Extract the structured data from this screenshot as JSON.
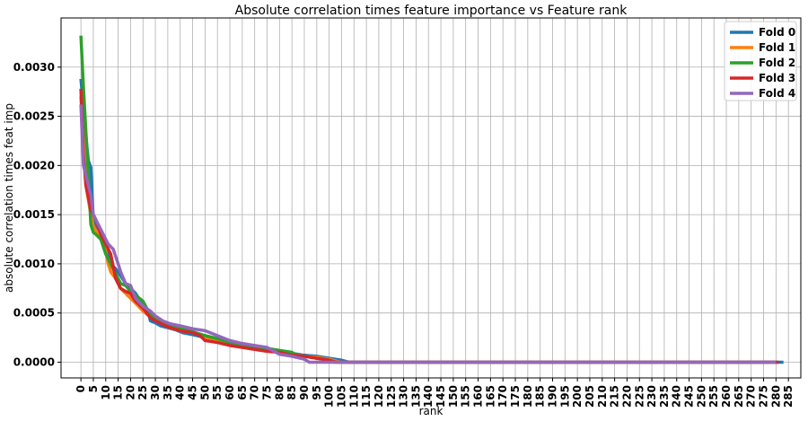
{
  "chart_data": {
    "type": "line",
    "title": "Absolute correlation times feature importance vs Feature rank",
    "xlabel": "rank",
    "ylabel": "absolute correlation times feat imp",
    "xlim": [
      -8,
      290
    ],
    "ylim": [
      -0.00016,
      0.0035
    ],
    "x_ticks": [
      0,
      5,
      10,
      15,
      20,
      25,
      30,
      35,
      40,
      45,
      50,
      55,
      60,
      65,
      70,
      75,
      80,
      85,
      90,
      95,
      100,
      105,
      110,
      115,
      120,
      125,
      130,
      135,
      140,
      145,
      150,
      155,
      160,
      165,
      170,
      175,
      180,
      185,
      190,
      195,
      200,
      205,
      210,
      215,
      220,
      225,
      230,
      235,
      240,
      245,
      250,
      255,
      260,
      265,
      270,
      275,
      280,
      285
    ],
    "y_ticks": [
      0.0,
      0.0005,
      0.001,
      0.0015,
      0.002,
      0.0025,
      0.003
    ],
    "y_tick_labels": [
      "0.0000",
      "0.0005",
      "0.0010",
      "0.0015",
      "0.0020",
      "0.0025",
      "0.0030"
    ],
    "grid": true,
    "legend_position": "top-right",
    "series": [
      {
        "name": "Fold 0",
        "color": "#1f77b4",
        "points": [
          [
            0,
            0.00288
          ],
          [
            1,
            0.0026
          ],
          [
            2,
            0.0023
          ],
          [
            3,
            0.00205
          ],
          [
            4,
            0.00198
          ],
          [
            5,
            0.00145
          ],
          [
            6,
            0.0014
          ],
          [
            7,
            0.00135
          ],
          [
            8,
            0.0013
          ],
          [
            10,
            0.0012
          ],
          [
            12,
            0.001
          ],
          [
            14,
            0.00095
          ],
          [
            16,
            0.00088
          ],
          [
            18,
            0.0008
          ],
          [
            20,
            0.00075
          ],
          [
            22,
            0.0007
          ],
          [
            24,
            0.00062
          ],
          [
            27,
            0.00052
          ],
          [
            28,
            0.00042
          ],
          [
            30,
            0.0004
          ],
          [
            32,
            0.00037
          ],
          [
            35,
            0.00035
          ],
          [
            38,
            0.00033
          ],
          [
            41,
            0.0003
          ],
          [
            45,
            0.00028
          ],
          [
            50,
            0.00025
          ],
          [
            55,
            0.00022
          ],
          [
            60,
            0.00019
          ],
          [
            65,
            0.00017
          ],
          [
            70,
            0.00015
          ],
          [
            75,
            0.00013
          ],
          [
            80,
            0.00011
          ],
          [
            85,
            9e-05
          ],
          [
            90,
            7e-05
          ],
          [
            95,
            6e-05
          ],
          [
            100,
            4e-05
          ],
          [
            105,
            2e-05
          ],
          [
            108,
            0.0
          ],
          [
            283,
            0.0
          ]
        ]
      },
      {
        "name": "Fold 1",
        "color": "#ff7f0e",
        "points": [
          [
            0,
            0.0027
          ],
          [
            2,
            0.0018
          ],
          [
            4,
            0.0015
          ],
          [
            5,
            0.00138
          ],
          [
            7,
            0.0013
          ],
          [
            9,
            0.00125
          ],
          [
            11,
            0.001
          ],
          [
            12,
            0.00092
          ],
          [
            14,
            0.00085
          ],
          [
            16,
            0.00075
          ],
          [
            18,
            0.0007
          ],
          [
            20,
            0.00065
          ],
          [
            22,
            0.0006
          ],
          [
            25,
            0.00052
          ],
          [
            28,
            0.00046
          ],
          [
            32,
            0.0004
          ],
          [
            35,
            0.00036
          ],
          [
            40,
            0.00032
          ],
          [
            45,
            0.0003
          ],
          [
            48,
            0.00028
          ],
          [
            50,
            0.00024
          ],
          [
            55,
            0.00021
          ],
          [
            60,
            0.00018
          ],
          [
            65,
            0.00016
          ],
          [
            70,
            0.00014
          ],
          [
            75,
            0.00012
          ],
          [
            80,
            0.0001
          ],
          [
            85,
            8e-05
          ],
          [
            90,
            6e-05
          ],
          [
            95,
            5e-05
          ],
          [
            100,
            3e-05
          ],
          [
            103,
            1e-05
          ],
          [
            105,
            0.0
          ],
          [
            280,
            0.0
          ]
        ]
      },
      {
        "name": "Fold 2",
        "color": "#2ca02c",
        "points": [
          [
            0,
            0.00332
          ],
          [
            1,
            0.0028
          ],
          [
            3,
            0.0019
          ],
          [
            4,
            0.0014
          ],
          [
            5,
            0.00132
          ],
          [
            6,
            0.0013
          ],
          [
            8,
            0.00125
          ],
          [
            10,
            0.0011
          ],
          [
            12,
            0.001
          ],
          [
            14,
            0.0009
          ],
          [
            16,
            0.0008
          ],
          [
            18,
            0.00078
          ],
          [
            20,
            0.00072
          ],
          [
            22,
            0.00068
          ],
          [
            25,
            0.00062
          ],
          [
            28,
            0.00048
          ],
          [
            30,
            0.00045
          ],
          [
            35,
            0.00038
          ],
          [
            40,
            0.00034
          ],
          [
            45,
            0.00031
          ],
          [
            50,
            0.00027
          ],
          [
            55,
            0.00024
          ],
          [
            60,
            0.0002
          ],
          [
            65,
            0.00018
          ],
          [
            70,
            0.00016
          ],
          [
            75,
            0.00014
          ],
          [
            80,
            0.00012
          ],
          [
            85,
            0.0001
          ],
          [
            87,
            7e-05
          ],
          [
            90,
            6e-05
          ],
          [
            95,
            4e-05
          ],
          [
            100,
            2e-05
          ],
          [
            102,
            0.0
          ],
          [
            280,
            0.0
          ]
        ]
      },
      {
        "name": "Fold 3",
        "color": "#d62728",
        "points": [
          [
            0,
            0.00278
          ],
          [
            1,
            0.0021
          ],
          [
            2,
            0.0018
          ],
          [
            4,
            0.00155
          ],
          [
            6,
            0.00145
          ],
          [
            8,
            0.0013
          ],
          [
            10,
            0.0012
          ],
          [
            12,
            0.0011
          ],
          [
            14,
            0.00085
          ],
          [
            16,
            0.00075
          ],
          [
            18,
            0.00072
          ],
          [
            20,
            0.0007
          ],
          [
            22,
            0.00062
          ],
          [
            25,
            0.00055
          ],
          [
            28,
            0.00045
          ],
          [
            30,
            0.00042
          ],
          [
            35,
            0.00036
          ],
          [
            40,
            0.00032
          ],
          [
            45,
            0.0003
          ],
          [
            48,
            0.00027
          ],
          [
            50,
            0.00022
          ],
          [
            55,
            0.0002
          ],
          [
            60,
            0.00017
          ],
          [
            65,
            0.00015
          ],
          [
            70,
            0.00013
          ],
          [
            75,
            0.00011
          ],
          [
            80,
            0.0001
          ],
          [
            85,
            7e-05
          ],
          [
            90,
            6e-05
          ],
          [
            95,
            4e-05
          ],
          [
            100,
            2e-05
          ],
          [
            103,
            0.0
          ],
          [
            281,
            0.0
          ]
        ]
      },
      {
        "name": "Fold 4",
        "color": "#9467bd",
        "points": [
          [
            0,
            0.00262
          ],
          [
            1,
            0.002
          ],
          [
            2,
            0.0019
          ],
          [
            4,
            0.0017
          ],
          [
            5,
            0.0015
          ],
          [
            7,
            0.0014
          ],
          [
            9,
            0.0013
          ],
          [
            11,
            0.0012
          ],
          [
            13,
            0.00115
          ],
          [
            15,
            0.001
          ],
          [
            16,
            0.00092
          ],
          [
            18,
            0.0008
          ],
          [
            20,
            0.00078
          ],
          [
            22,
            0.00065
          ],
          [
            25,
            0.00057
          ],
          [
            28,
            0.00052
          ],
          [
            30,
            0.00047
          ],
          [
            33,
            0.00042
          ],
          [
            36,
            0.00039
          ],
          [
            40,
            0.00037
          ],
          [
            45,
            0.00034
          ],
          [
            50,
            0.00032
          ],
          [
            55,
            0.00027
          ],
          [
            60,
            0.00022
          ],
          [
            65,
            0.00019
          ],
          [
            70,
            0.00017
          ],
          [
            75,
            0.00015
          ],
          [
            80,
            8e-05
          ],
          [
            85,
            6e-05
          ],
          [
            90,
            3e-05
          ],
          [
            92,
            0.0
          ],
          [
            280,
            0.0
          ]
        ]
      }
    ]
  }
}
